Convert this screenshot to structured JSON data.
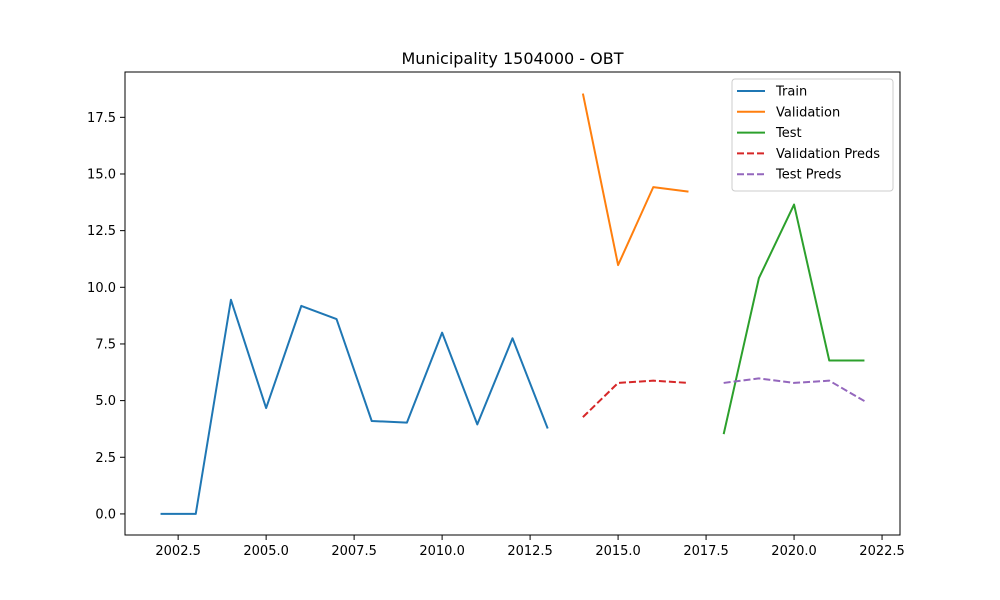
{
  "chart_data": {
    "type": "line",
    "title": "Municipality 1504000 - OBT",
    "xlabel": "",
    "ylabel": "",
    "xlim": [
      2000.99,
      2023.01
    ],
    "ylim": [
      -0.93,
      19.5
    ],
    "xticks": [
      2002.5,
      2005.0,
      2007.5,
      2010.0,
      2012.5,
      2015.0,
      2017.5,
      2020.0,
      2022.5
    ],
    "xtick_labels": [
      "2002.5",
      "2005.0",
      "2007.5",
      "2010.0",
      "2012.5",
      "2015.0",
      "2017.5",
      "2020.0",
      "2022.5"
    ],
    "yticks": [
      0.0,
      2.5,
      5.0,
      7.5,
      10.0,
      12.5,
      15.0,
      17.5
    ],
    "ytick_labels": [
      "0.0",
      "2.5",
      "5.0",
      "7.5",
      "10.0",
      "12.5",
      "15.0",
      "17.5"
    ],
    "grid": false,
    "legend_position": "top-right",
    "series": [
      {
        "name": "Train",
        "color": "#1f77b4",
        "dash": "solid",
        "x": [
          2002,
          2003,
          2004,
          2005,
          2006,
          2007,
          2008,
          2009,
          2010,
          2011,
          2012,
          2013
        ],
        "y": [
          0.0,
          0.0,
          9.45,
          4.67,
          9.18,
          8.6,
          4.1,
          4.03,
          8.0,
          3.95,
          7.75,
          3.77
        ]
      },
      {
        "name": "Validation",
        "color": "#ff7f0e",
        "dash": "solid",
        "x": [
          2014,
          2015,
          2016,
          2017
        ],
        "y": [
          18.55,
          10.98,
          14.42,
          14.22
        ]
      },
      {
        "name": "Test",
        "color": "#2ca02c",
        "dash": "solid",
        "x": [
          2018,
          2019,
          2020,
          2021,
          2022
        ],
        "y": [
          3.52,
          10.4,
          13.65,
          6.77,
          6.77
        ]
      },
      {
        "name": "Validation Preds",
        "color": "#d62728",
        "dash": "dashed",
        "x": [
          2014,
          2015,
          2016,
          2017
        ],
        "y": [
          4.27,
          5.78,
          5.88,
          5.78
        ]
      },
      {
        "name": "Test Preds",
        "color": "#9467bd",
        "dash": "dashed",
        "x": [
          2018,
          2019,
          2020,
          2021,
          2022
        ],
        "y": [
          5.78,
          5.98,
          5.78,
          5.88,
          4.98
        ]
      }
    ]
  }
}
